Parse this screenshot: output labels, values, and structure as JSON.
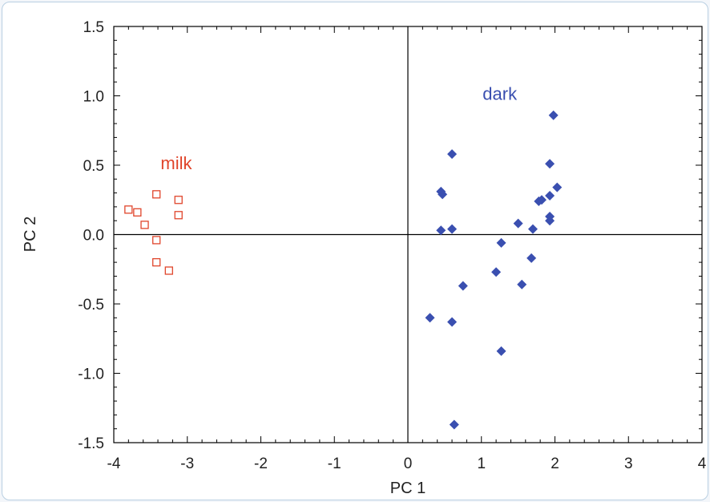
{
  "chart_data": {
    "type": "scatter",
    "xlabel": "PC 1",
    "ylabel": "PC 2",
    "xlim": [
      -4,
      4
    ],
    "ylim": [
      -1.5,
      1.5
    ],
    "grid": false,
    "zero_lines": true,
    "x_ticks": [
      -4,
      -3,
      -2,
      -1,
      0,
      1,
      2,
      3,
      4
    ],
    "y_ticks": [
      1.5,
      1.0,
      0.5,
      0.0,
      -0.5,
      -1.0,
      -1.5
    ],
    "x_tick_labels": [
      "-4",
      "-3",
      "-2",
      "-1",
      "0",
      "1",
      "2",
      "3",
      "4"
    ],
    "y_tick_labels": [
      "1.5",
      "1.0",
      "0.5",
      "0.0",
      "-0.5",
      "-1.0",
      "-1.5"
    ],
    "series": [
      {
        "name": "milk",
        "marker": "open-square",
        "color": "#e0452b",
        "points": [
          {
            "x": -3.8,
            "y": 0.18
          },
          {
            "x": -3.68,
            "y": 0.16
          },
          {
            "x": -3.58,
            "y": 0.07
          },
          {
            "x": -3.42,
            "y": 0.29
          },
          {
            "x": -3.42,
            "y": -0.04
          },
          {
            "x": -3.42,
            "y": -0.2
          },
          {
            "x": -3.25,
            "y": -0.26
          },
          {
            "x": -3.12,
            "y": 0.25
          },
          {
            "x": -3.12,
            "y": 0.14
          }
        ]
      },
      {
        "name": "dark",
        "marker": "filled-diamond",
        "color": "#3a4fb0",
        "points": [
          {
            "x": 0.45,
            "y": 0.31
          },
          {
            "x": 0.47,
            "y": 0.29
          },
          {
            "x": 0.6,
            "y": 0.58
          },
          {
            "x": 0.45,
            "y": 0.03
          },
          {
            "x": 0.6,
            "y": 0.04
          },
          {
            "x": 0.3,
            "y": -0.6
          },
          {
            "x": 0.6,
            "y": -0.63
          },
          {
            "x": 0.75,
            "y": -0.37
          },
          {
            "x": 0.63,
            "y": -1.37
          },
          {
            "x": 1.2,
            "y": -0.27
          },
          {
            "x": 1.27,
            "y": -0.06
          },
          {
            "x": 1.27,
            "y": -0.84
          },
          {
            "x": 1.5,
            "y": 0.08
          },
          {
            "x": 1.55,
            "y": -0.36
          },
          {
            "x": 1.68,
            "y": -0.17
          },
          {
            "x": 1.7,
            "y": 0.04
          },
          {
            "x": 1.78,
            "y": 0.24
          },
          {
            "x": 1.82,
            "y": 0.25
          },
          {
            "x": 1.93,
            "y": 0.28
          },
          {
            "x": 1.93,
            "y": 0.51
          },
          {
            "x": 1.93,
            "y": 0.13
          },
          {
            "x": 1.93,
            "y": 0.1
          },
          {
            "x": 1.98,
            "y": 0.86
          },
          {
            "x": 2.03,
            "y": 0.34
          }
        ]
      }
    ],
    "annotations": [
      {
        "text": "milk",
        "x": -3.15,
        "y": 0.47,
        "color": "#e0452b"
      },
      {
        "text": "dark",
        "x": 1.25,
        "y": 0.97,
        "color": "#3a4fb0"
      }
    ]
  }
}
